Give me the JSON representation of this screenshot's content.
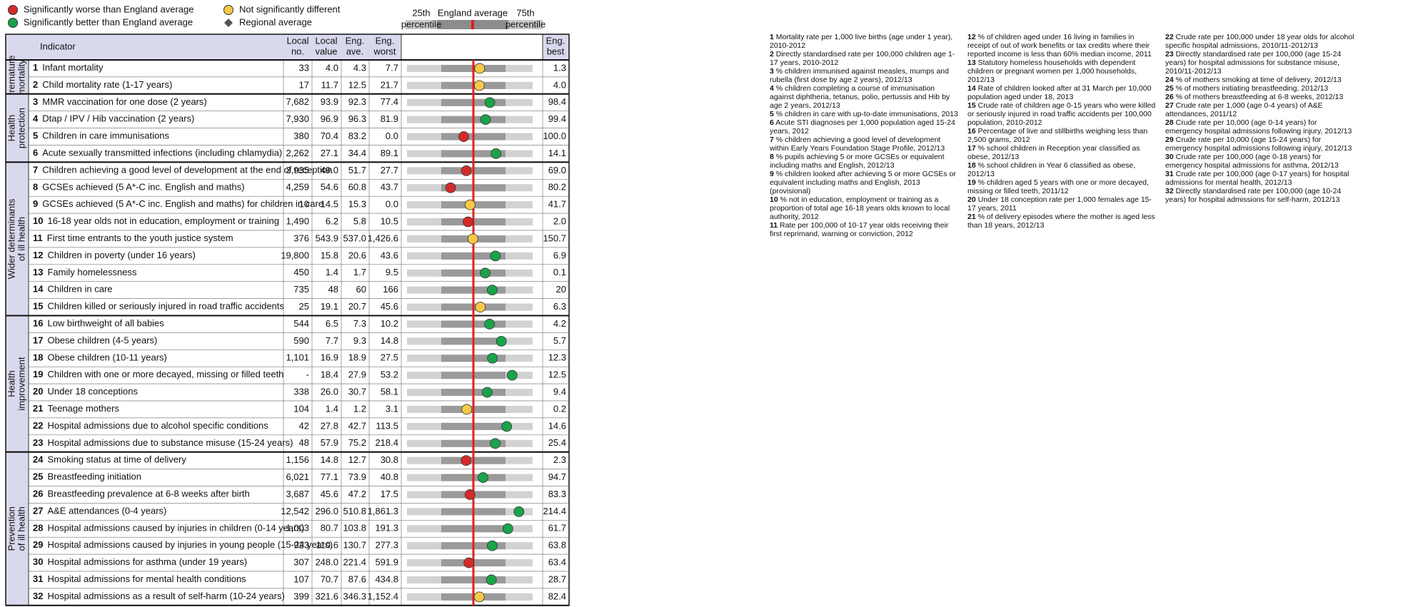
{
  "legend": [
    {
      "label": "Significantly worse than England average",
      "color": "#d42a2a"
    },
    {
      "label": "Significantly better than England average",
      "color": "#1aa34a"
    },
    {
      "label": "Not significantly different",
      "color": "#f7c948"
    },
    {
      "label": "Regional average",
      "color": "#555555"
    }
  ],
  "key": {
    "left": [
      "25th",
      "percentile"
    ],
    "center": "England average",
    "right": [
      "75th",
      "percentile"
    ]
  },
  "table": {
    "columns": [
      [
        "Indicator"
      ],
      [
        "Local",
        "no."
      ],
      [
        "Local",
        "value"
      ],
      [
        "Eng.",
        "ave."
      ],
      [
        "Eng.",
        "worst"
      ],
      [
        "Eng.",
        "best"
      ]
    ],
    "groups": [
      {
        "label": [
          "Premature",
          "mortality"
        ],
        "rows": [
          {
            "num": "1",
            "name": "Infant mortality",
            "local_no": "33",
            "local_value": "4.0",
            "eng_ave": "4.3",
            "eng_worst": "7.7",
            "eng_best": "1.3",
            "marker_color": "#f7c948"
          },
          {
            "num": "2",
            "name": "Child mortality rate (1-17 years)",
            "local_no": "17",
            "local_value": "11.7",
            "eng_ave": "12.5",
            "eng_worst": "21.7",
            "eng_best": "4.0",
            "marker_color": "#f7c948"
          }
        ]
      },
      {
        "label": [
          "Health",
          "protection"
        ],
        "rows": [
          {
            "num": "3",
            "name": "MMR vaccination for one dose (2 years)",
            "local_no": "7,682",
            "local_value": "93.9",
            "eng_ave": "92.3",
            "eng_worst": "77.4",
            "eng_best": "98.4",
            "marker_color": "#1aa34a"
          },
          {
            "num": "4",
            "name": "Dtap / IPV / Hib vaccination (2 years)",
            "local_no": "7,930",
            "local_value": "96.9",
            "eng_ave": "96.3",
            "eng_worst": "81.9",
            "eng_best": "99.4",
            "marker_color": "#1aa34a"
          },
          {
            "num": "5",
            "name": "Children in care immunisations",
            "local_no": "380",
            "local_value": "70.4",
            "eng_ave": "83.2",
            "eng_worst": "0.0",
            "eng_best": "100.0",
            "marker_color": "#d42a2a"
          },
          {
            "num": "6",
            "name": "Acute sexually transmitted infections (including chlamydia)",
            "local_no": "2,262",
            "local_value": "27.1",
            "eng_ave": "34.4",
            "eng_worst": "89.1",
            "eng_best": "14.1",
            "marker_color": "#1aa34a"
          }
        ]
      },
      {
        "label": [
          "Wider determinants",
          "of ill health"
        ],
        "rows": [
          {
            "num": "7",
            "name": "Children achieving a good level of development at the end of reception",
            "local_no": "3,935",
            "local_value": "49.0",
            "eng_ave": "51.7",
            "eng_worst": "27.7",
            "eng_best": "69.0",
            "marker_color": "#d42a2a"
          },
          {
            "num": "8",
            "name": "GCSEs achieved (5 A*-C inc. English and maths)",
            "local_no": "4,259",
            "local_value": "54.6",
            "eng_ave": "60.8",
            "eng_worst": "43.7",
            "eng_best": "80.2",
            "marker_color": "#d42a2a"
          },
          {
            "num": "9",
            "name": "GCSEs achieved (5 A*-C inc. English and maths) for children in care",
            "local_no": "10",
            "local_value": "14.5",
            "eng_ave": "15.3",
            "eng_worst": "0.0",
            "eng_best": "41.7",
            "marker_color": "#f7c948"
          },
          {
            "num": "10",
            "name": "16-18 year olds not in education, employment or training",
            "local_no": "1,490",
            "local_value": "6.2",
            "eng_ave": "5.8",
            "eng_worst": "10.5",
            "eng_best": "2.0",
            "marker_color": "#d42a2a"
          },
          {
            "num": "11",
            "name": "First time entrants to the youth justice system",
            "local_no": "376",
            "local_value": "543.9",
            "eng_ave": "537.0",
            "eng_worst": "1,426.6",
            "eng_best": "150.7",
            "marker_color": "#f7c948"
          },
          {
            "num": "12",
            "name": "Children in poverty (under 16 years)",
            "local_no": "19,800",
            "local_value": "15.8",
            "eng_ave": "20.6",
            "eng_worst": "43.6",
            "eng_best": "6.9",
            "marker_color": "#1aa34a"
          },
          {
            "num": "13",
            "name": "Family homelessness",
            "local_no": "450",
            "local_value": "1.4",
            "eng_ave": "1.7",
            "eng_worst": "9.5",
            "eng_best": "0.1",
            "marker_color": "#1aa34a"
          },
          {
            "num": "14",
            "name": "Children in care",
            "local_no": "735",
            "local_value": "48",
            "eng_ave": "60",
            "eng_worst": "166",
            "eng_best": "20",
            "marker_color": "#1aa34a"
          },
          {
            "num": "15",
            "name": "Children killed or seriously injured in road traffic accidents",
            "local_no": "25",
            "local_value": "19.1",
            "eng_ave": "20.7",
            "eng_worst": "45.6",
            "eng_best": "6.3",
            "marker_color": "#f7c948"
          }
        ]
      },
      {
        "label": [
          "Health",
          "improvement"
        ],
        "rows": [
          {
            "num": "16",
            "name": "Low birthweight of all babies",
            "local_no": "544",
            "local_value": "6.5",
            "eng_ave": "7.3",
            "eng_worst": "10.2",
            "eng_best": "4.2",
            "marker_color": "#1aa34a"
          },
          {
            "num": "17",
            "name": "Obese children (4-5 years)",
            "local_no": "590",
            "local_value": "7.7",
            "eng_ave": "9.3",
            "eng_worst": "14.8",
            "eng_best": "5.7",
            "marker_color": "#1aa34a"
          },
          {
            "num": "18",
            "name": "Obese children (10-11 years)",
            "local_no": "1,101",
            "local_value": "16.9",
            "eng_ave": "18.9",
            "eng_worst": "27.5",
            "eng_best": "12.3",
            "marker_color": "#1aa34a"
          },
          {
            "num": "19",
            "name": "Children with one or more decayed, missing or filled teeth",
            "local_no": "-",
            "local_value": "18.4",
            "eng_ave": "27.9",
            "eng_worst": "53.2",
            "eng_best": "12.5",
            "marker_color": "#1aa34a"
          },
          {
            "num": "20",
            "name": "Under 18 conceptions",
            "local_no": "338",
            "local_value": "26.0",
            "eng_ave": "30.7",
            "eng_worst": "58.1",
            "eng_best": "9.4",
            "marker_color": "#1aa34a"
          },
          {
            "num": "21",
            "name": "Teenage mothers",
            "local_no": "104",
            "local_value": "1.4",
            "eng_ave": "1.2",
            "eng_worst": "3.1",
            "eng_best": "0.2",
            "marker_color": "#f7c948"
          },
          {
            "num": "22",
            "name": "Hospital admissions due to alcohol specific conditions",
            "local_no": "42",
            "local_value": "27.8",
            "eng_ave": "42.7",
            "eng_worst": "113.5",
            "eng_best": "14.6",
            "marker_color": "#1aa34a"
          },
          {
            "num": "23",
            "name": "Hospital admissions due to substance misuse (15-24 years)",
            "local_no": "48",
            "local_value": "57.9",
            "eng_ave": "75.2",
            "eng_worst": "218.4",
            "eng_best": "25.4",
            "marker_color": "#1aa34a"
          }
        ]
      },
      {
        "label": [
          "Prevention",
          "of ill health"
        ],
        "rows": [
          {
            "num": "24",
            "name": "Smoking status at time of delivery",
            "local_no": "1,156",
            "local_value": "14.8",
            "eng_ave": "12.7",
            "eng_worst": "30.8",
            "eng_best": "2.3",
            "marker_color": "#d42a2a"
          },
          {
            "num": "25",
            "name": "Breastfeeding initiation",
            "local_no": "6,021",
            "local_value": "77.1",
            "eng_ave": "73.9",
            "eng_worst": "40.8",
            "eng_best": "94.7",
            "marker_color": "#1aa34a"
          },
          {
            "num": "26",
            "name": "Breastfeeding prevalence at 6-8 weeks after birth",
            "local_no": "3,687",
            "local_value": "45.6",
            "eng_ave": "47.2",
            "eng_worst": "17.5",
            "eng_best": "83.3",
            "marker_color": "#d42a2a"
          },
          {
            "num": "27",
            "name": "A&E attendances (0-4 years)",
            "local_no": "12,542",
            "local_value": "296.0",
            "eng_ave": "510.8",
            "eng_worst": "1,861.3",
            "eng_best": "214.4",
            "marker_color": "#1aa34a"
          },
          {
            "num": "28",
            "name": "Hospital admissions caused by injuries in children (0-14 years)",
            "local_no": "1,003",
            "local_value": "80.7",
            "eng_ave": "103.8",
            "eng_worst": "191.3",
            "eng_best": "61.7",
            "marker_color": "#1aa34a"
          },
          {
            "num": "29",
            "name": "Hospital admissions caused by injuries in young people (15-24 years)",
            "local_no": "923",
            "local_value": "110.6",
            "eng_ave": "130.7",
            "eng_worst": "277.3",
            "eng_best": "63.8",
            "marker_color": "#1aa34a"
          },
          {
            "num": "30",
            "name": "Hospital admissions for asthma (under 19 years)",
            "local_no": "307",
            "local_value": "248.0",
            "eng_ave": "221.4",
            "eng_worst": "591.9",
            "eng_best": "63.4",
            "marker_color": "#d42a2a"
          },
          {
            "num": "31",
            "name": "Hospital admissions for mental health conditions",
            "local_no": "107",
            "local_value": "70.7",
            "eng_ave": "87.6",
            "eng_worst": "434.8",
            "eng_best": "28.7",
            "marker_color": "#1aa34a"
          },
          {
            "num": "32",
            "name": "Hospital admissions as a result of self-harm (10-24 years)",
            "local_no": "399",
            "local_value": "321.6",
            "eng_ave": "346.3",
            "eng_worst": "1,152.4",
            "eng_best": "82.4",
            "marker_color": "#f7c948"
          }
        ]
      }
    ]
  },
  "notes": [
    [
      {
        "num": "1",
        "text": "Mortality rate per 1,000 live births (age under 1 year), 2010-2012"
      },
      {
        "num": "2",
        "text": "Directly standardised rate per 100,000 children age 1-17 years, 2010-2012"
      },
      {
        "num": "3",
        "text": "% children immunised against measles, mumps and rubella (first dose by age 2 years), 2012/13"
      },
      {
        "num": "4",
        "text": "% children completing a course of immunisation against diphtheria, tetanus, polio, pertussis and Hib by age 2 years, 2012/13"
      },
      {
        "num": "5",
        "text": "% children in care with up-to-date immunisations, 2013"
      },
      {
        "num": "6",
        "text": "Acute STI diagnoses per 1,000 population aged 15-24 years, 2012"
      },
      {
        "num": "7",
        "text": "% children achieving a good level of development within Early Years Foundation Stage Profile, 2012/13"
      },
      {
        "num": "8",
        "text": "% pupils achieving 5 or more GCSEs or equivalent including maths and English, 2012/13"
      },
      {
        "num": "9",
        "text": "% children looked after achieving 5 or more GCSEs or equivalent including maths and English, 2013 (provisional)"
      },
      {
        "num": "10",
        "text": "% not in education, employment or training as a proportion of total age 16-18 years olds known to local authority, 2012"
      },
      {
        "num": "11",
        "text": "Rate per 100,000 of 10-17 year olds receiving their first reprimand, warning or conviction, 2012"
      }
    ],
    [
      {
        "num": "12",
        "text": "% of children aged under 16 living in families in receipt of out of work benefits or tax credits where their reported income is less than 60% median income, 2011"
      },
      {
        "num": "13",
        "text": "Statutory homeless households with dependent children or pregnant women per 1,000 households, 2012/13"
      },
      {
        "num": "14",
        "text": "Rate of children looked after at 31 March per 10,000 population aged under 18, 2013"
      },
      {
        "num": "15",
        "text": "Crude rate of children age 0-15 years who were killed or seriously injured in road traffic accidents per 100,000 population, 2010-2012"
      },
      {
        "num": "16",
        "text": "Percentage of live and stillbirths weighing less than 2,500 grams, 2012"
      },
      {
        "num": "17",
        "text": "% school children in Reception year classified as obese, 2012/13"
      },
      {
        "num": "18",
        "text": "% school children in Year 6 classified as obese, 2012/13"
      },
      {
        "num": "19",
        "text": "% children aged 5 years with one or more decayed, missing or filled teeth, 2011/12"
      },
      {
        "num": "20",
        "text": "Under 18 conception rate per 1,000 females age 15-17 years, 2011"
      },
      {
        "num": "21",
        "text": "% of delivery episodes where the mother is aged less than 18 years, 2012/13"
      }
    ],
    [
      {
        "num": "22",
        "text": "Crude rate per 100,000 under 18 year olds for alcohol specific hospital admissions, 2010/11-2012/13"
      },
      {
        "num": "23",
        "text": "Directly standardised rate per 100,000 (age 15-24 years) for hospital admissions for substance misuse, 2010/11-2012/13"
      },
      {
        "num": "24",
        "text": "% of mothers smoking at time of delivery, 2012/13"
      },
      {
        "num": "25",
        "text": "% of mothers initiating breastfeeding, 2012/13"
      },
      {
        "num": "26",
        "text": "% of mothers breastfeeding at 6-8 weeks, 2012/13"
      },
      {
        "num": "27",
        "text": "Crude rate per 1,000 (age 0-4 years) of A&E attendances, 2011/12"
      },
      {
        "num": "28",
        "text": "Crude rate per 10,000 (age 0-14 years) for emergency hospital admissions following injury, 2012/13"
      },
      {
        "num": "29",
        "text": "Crude rate per 10,000 (age 15-24 years) for emergency hospital admissions following injury, 2012/13"
      },
      {
        "num": "30",
        "text": "Crude rate per 100,000 (age 0-18 years) for emergency hospital admissions for asthma, 2012/13"
      },
      {
        "num": "31",
        "text": "Crude rate per 100,000 (age 0-17 years) for hospital admissions for mental health, 2012/13"
      },
      {
        "num": "32",
        "text": "Directly standardised rate per 100,000 (age 10-24 years) for hospital admissions for self-harm, 2012/13"
      }
    ]
  ]
}
